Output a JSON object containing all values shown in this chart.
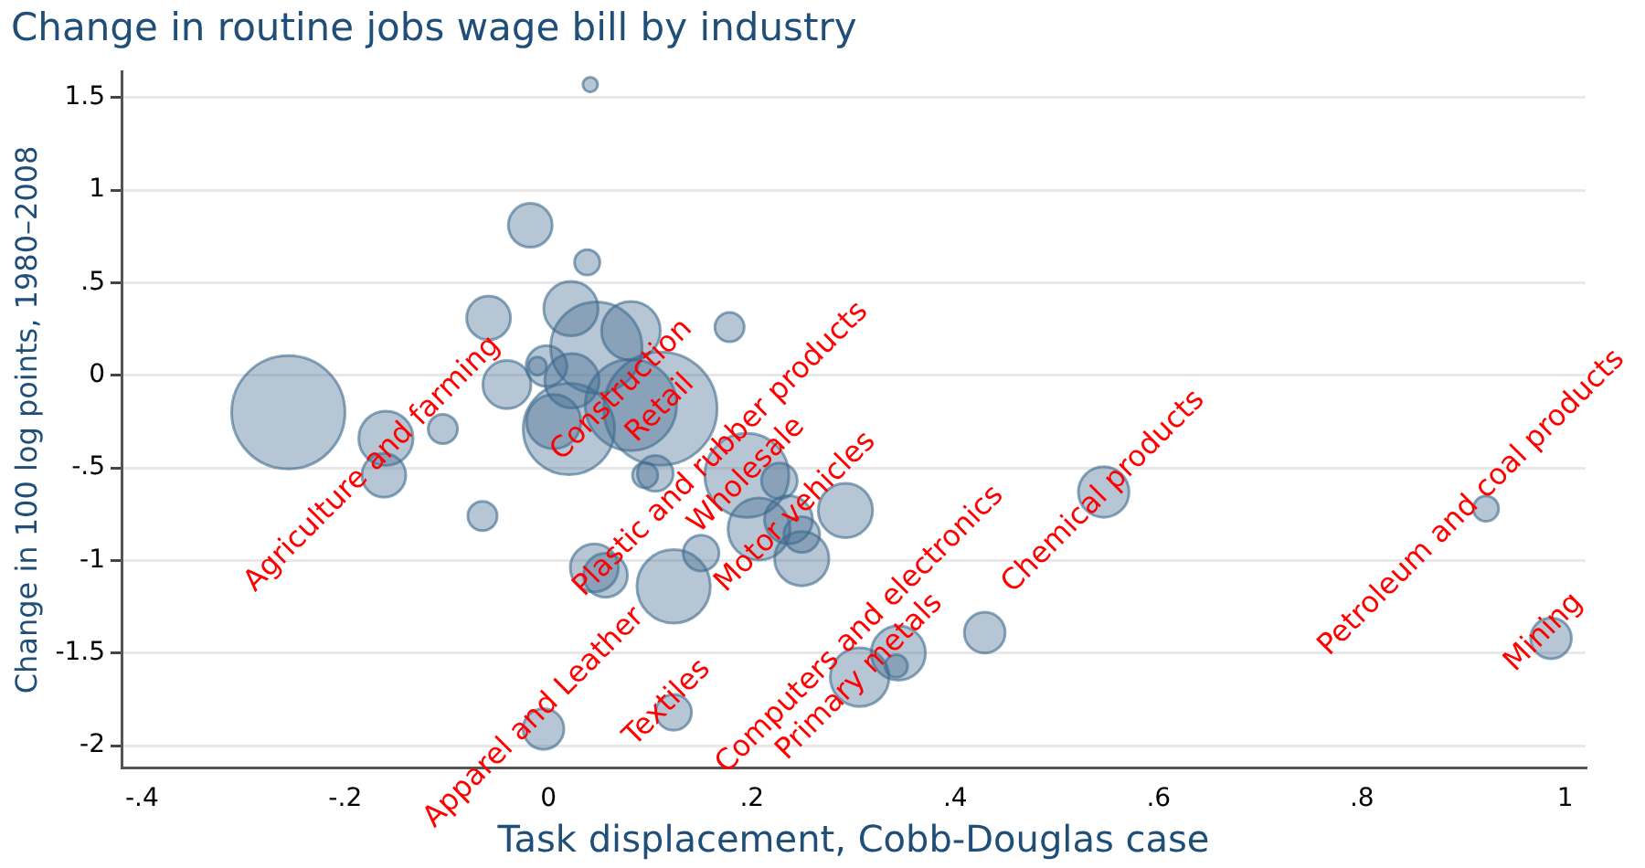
{
  "chart_data": {
    "type": "bubble",
    "title": "Change in routine jobs wage bill by industry",
    "xlabel": "Task displacement, Cobb-Douglas case",
    "ylabel": "Change in 100 log points, 1980–2008",
    "series": [
      {
        "color": "#3e6a8e",
        "x": [
          -0.256,
          0.041,
          -0.018,
          0.038,
          0.022,
          -0.059,
          0.178,
          0.081,
          0.047,
          -0.041,
          -0.002,
          -0.011,
          0.023,
          0.02,
          0.005,
          0.11,
          0.081,
          -0.104,
          -0.16,
          -0.162,
          -0.065,
          0.095,
          0.105,
          0.195,
          0.227,
          0.292,
          0.207,
          0.236,
          0.249,
          0.249,
          0.045,
          0.056,
          0.123,
          0.15,
          -0.005,
          0.123,
          0.306,
          0.344,
          0.342,
          0.429,
          0.546,
          0.922,
          0.986
        ],
        "values": [
          -0.2,
          1.57,
          0.81,
          0.61,
          0.36,
          0.31,
          0.26,
          0.24,
          0.15,
          -0.05,
          0.05,
          0.05,
          -0.03,
          -0.29,
          -0.25,
          -0.18,
          -0.16,
          -0.29,
          -0.34,
          -0.54,
          -0.76,
          -0.54,
          -0.53,
          -0.54,
          -0.57,
          -0.73,
          -0.83,
          -0.78,
          -0.86,
          -0.99,
          -1.04,
          -1.08,
          -1.14,
          -0.96,
          -1.91,
          -1.82,
          -1.63,
          -1.5,
          -1.57,
          -1.39,
          -0.63,
          -0.72,
          -1.42
        ],
        "sizes": [
          1,
          0.017,
          0.15,
          0.05,
          0.23,
          0.15,
          0.067,
          0.27,
          0.65,
          0.18,
          0.13,
          0.026,
          0.23,
          0.65,
          0.23,
          1,
          0.65,
          0.067,
          0.23,
          0.15,
          0.067,
          0.05,
          0.1,
          0.55,
          0.1,
          0.23,
          0.3,
          0.18,
          0.1,
          0.23,
          0.18,
          0.15,
          0.42,
          0.1,
          0.13,
          0.1,
          0.27,
          0.23,
          0.04,
          0.13,
          0.2,
          0.05,
          0.13
        ]
      }
    ],
    "xlim": [
      -0.42,
      1.02
    ],
    "ylim": [
      -2.12,
      1.64
    ],
    "xticks": [
      {
        "value": -0.4,
        "label": "-.4"
      },
      {
        "value": -0.2,
        "label": "-.2"
      },
      0,
      {
        "value": 0.2,
        "label": ".2"
      },
      {
        "value": 0.4,
        "label": ".4"
      },
      {
        "value": 0.6,
        "label": ".6"
      },
      {
        "value": 0.8,
        "label": ".8"
      },
      1
    ],
    "yticks": [
      -2,
      -1.5,
      -1,
      {
        "value": -0.5,
        "label": "-.5"
      },
      0,
      {
        "value": 0.5,
        "label": ".5"
      },
      1,
      1.5
    ],
    "grid": "y",
    "legend": false,
    "annotations": [
      {
        "text": "Agriculture and farming",
        "x": -0.173,
        "y": -0.48
      },
      {
        "text": "Construction",
        "x": 0.072,
        "y": -0.08
      },
      {
        "text": "Retail",
        "x": 0.11,
        "y": -0.18
      },
      {
        "text": "Wholesale",
        "x": 0.195,
        "y": -0.54
      },
      {
        "text": "Plastic and rubber products",
        "x": 0.195,
        "y": -0.54
      },
      {
        "text": "Motor vehicles",
        "x": 0.243,
        "y": -0.74
      },
      {
        "text": "Apparel and Leather",
        "x": -0.014,
        "y": -1.85
      },
      {
        "text": "Textiles",
        "x": 0.117,
        "y": -1.77
      },
      {
        "text": "Primary metals",
        "x": 0.306,
        "y": -1.63
      },
      {
        "text": "Computers and electronics",
        "x": 0.342,
        "y": -1.57
      },
      {
        "text": "Chemical products",
        "x": 0.546,
        "y": -0.63
      },
      {
        "text": "Petroleum and coal products",
        "x": 0.908,
        "y": -0.69
      },
      {
        "text": "Mining",
        "x": 0.979,
        "y": -1.39
      }
    ]
  }
}
